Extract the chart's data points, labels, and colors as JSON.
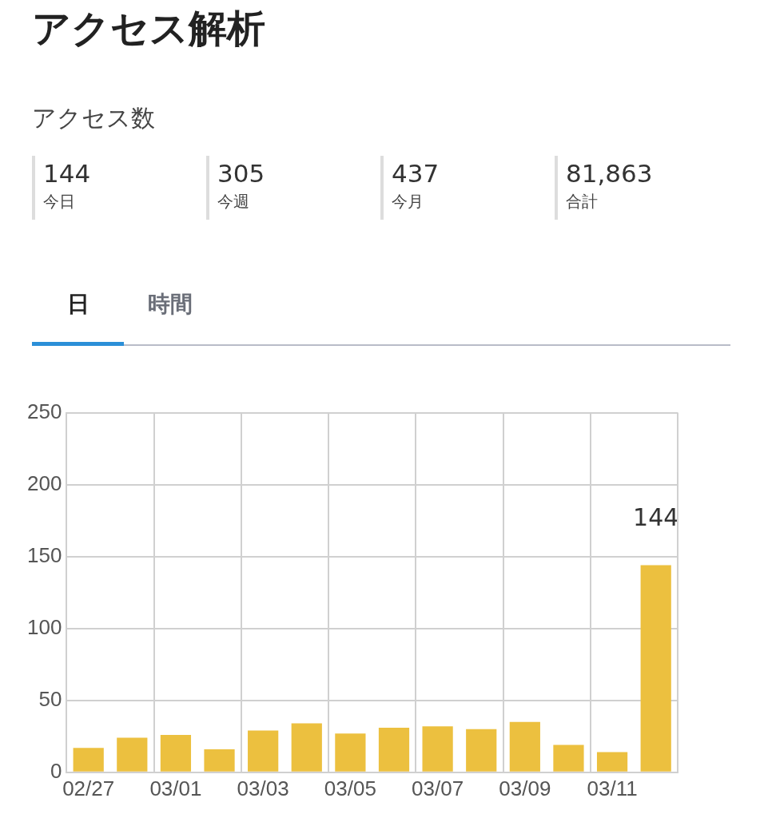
{
  "chart_data": [
    {
      "type": "other",
      "title": "アクセス解析",
      "subtitle": "アクセス数",
      "annotations": [
        "144",
        "今日",
        "305",
        "今週",
        "437",
        "今月",
        "81,863",
        "合計",
        "日",
        "時間"
      ]
    },
    {
      "type": "bar",
      "categories": [
        "02/27",
        null,
        "03/01",
        null,
        "03/03",
        null,
        "03/05",
        null,
        "03/07",
        null,
        "03/09",
        null,
        "03/11",
        null
      ],
      "values": [
        17,
        24,
        26,
        16,
        29,
        34,
        27,
        31,
        32,
        30,
        35,
        19,
        14,
        144
      ],
      "value_labels": [
        null,
        null,
        null,
        null,
        null,
        null,
        null,
        null,
        null,
        null,
        null,
        null,
        null,
        "144"
      ],
      "color": "#ecc03f",
      "ylim": [
        0,
        250
      ],
      "yticks": [
        0,
        50,
        100,
        150,
        200,
        250
      ],
      "grid": true,
      "legend": false
    }
  ]
}
